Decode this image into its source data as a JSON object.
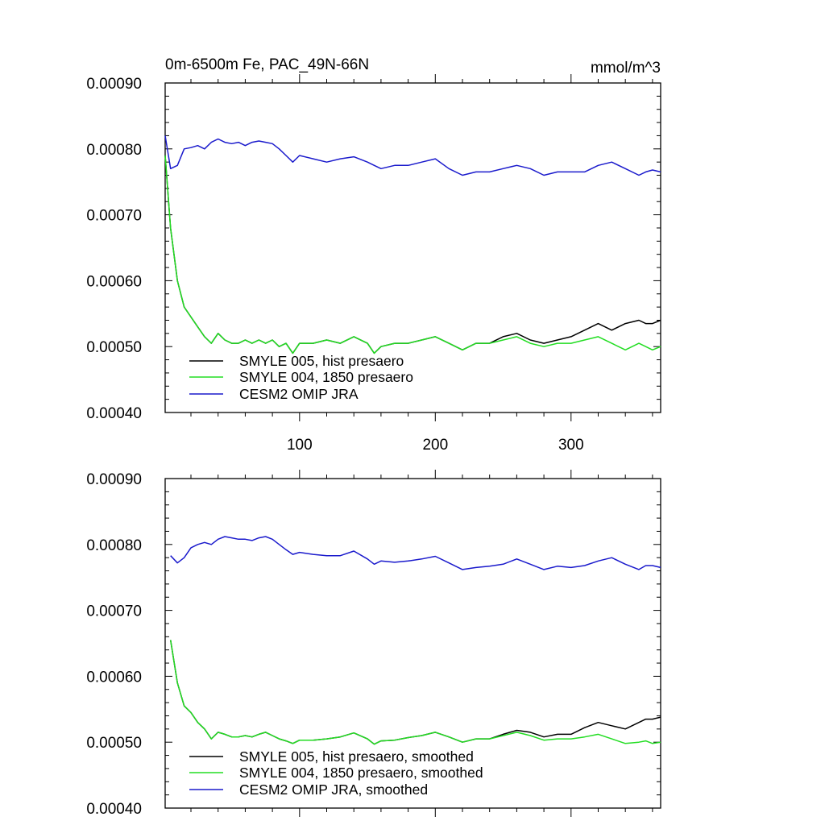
{
  "colors": {
    "black": "#000000",
    "green": "#22dd22",
    "blue": "#1a1acc"
  },
  "chart_data": [
    {
      "type": "line",
      "title": "0m-6500m Fe, PAC_49N-66N",
      "units": "mmol/m^3",
      "xlim": [
        1,
        366
      ],
      "ylim": [
        0.0004,
        0.0009
      ],
      "yticks": [
        "0.00040",
        "0.00050",
        "0.00060",
        "0.00070",
        "0.00080",
        "0.00090"
      ],
      "xticks": [
        "100",
        "200",
        "300"
      ],
      "legend_placement": "bottom-left",
      "series": [
        {
          "name": "SMYLE 005, hist presaero",
          "color": "black",
          "x": [
            1,
            5,
            10,
            15,
            20,
            25,
            30,
            35,
            40,
            45,
            50,
            55,
            60,
            65,
            70,
            75,
            80,
            85,
            90,
            95,
            100,
            110,
            120,
            130,
            140,
            150,
            155,
            160,
            170,
            180,
            190,
            200,
            210,
            220,
            230,
            240,
            250,
            260,
            270,
            280,
            290,
            300,
            310,
            320,
            330,
            340,
            350,
            355,
            360,
            366
          ],
          "y": [
            0.00079,
            0.00068,
            0.0006,
            0.00056,
            0.000545,
            0.00053,
            0.000515,
            0.000505,
            0.00052,
            0.00051,
            0.000505,
            0.000505,
            0.00051,
            0.000505,
            0.00051,
            0.000505,
            0.00051,
            0.0005,
            0.000505,
            0.00049,
            0.000505,
            0.000505,
            0.00051,
            0.000505,
            0.000515,
            0.000505,
            0.00049,
            0.0005,
            0.000505,
            0.000505,
            0.00051,
            0.000515,
            0.000505,
            0.000495,
            0.000505,
            0.000505,
            0.000515,
            0.00052,
            0.00051,
            0.000505,
            0.00051,
            0.000515,
            0.000525,
            0.000535,
            0.000525,
            0.000535,
            0.00054,
            0.000535,
            0.000535,
            0.00054
          ]
        },
        {
          "name": "SMYLE 004, 1850 presaero",
          "color": "green",
          "x": [
            1,
            5,
            10,
            15,
            20,
            25,
            30,
            35,
            40,
            45,
            50,
            55,
            60,
            65,
            70,
            75,
            80,
            85,
            90,
            95,
            100,
            110,
            120,
            130,
            140,
            150,
            155,
            160,
            170,
            180,
            190,
            200,
            210,
            220,
            230,
            240,
            250,
            260,
            270,
            280,
            290,
            300,
            310,
            320,
            330,
            340,
            350,
            355,
            360,
            366
          ],
          "y": [
            0.00079,
            0.00068,
            0.0006,
            0.00056,
            0.000545,
            0.00053,
            0.000515,
            0.000505,
            0.00052,
            0.00051,
            0.000505,
            0.000505,
            0.00051,
            0.000505,
            0.00051,
            0.000505,
            0.00051,
            0.0005,
            0.000505,
            0.00049,
            0.000505,
            0.000505,
            0.00051,
            0.000505,
            0.000515,
            0.000505,
            0.00049,
            0.0005,
            0.000505,
            0.000505,
            0.00051,
            0.000515,
            0.000505,
            0.000495,
            0.000505,
            0.000505,
            0.00051,
            0.000515,
            0.000505,
            0.0005,
            0.000505,
            0.000505,
            0.00051,
            0.000515,
            0.000505,
            0.000495,
            0.000505,
            0.0005,
            0.000495,
            0.0005
          ]
        },
        {
          "name": "CESM2 OMIP JRA",
          "color": "blue",
          "x": [
            1,
            5,
            10,
            15,
            20,
            25,
            30,
            35,
            40,
            45,
            50,
            55,
            60,
            65,
            70,
            75,
            80,
            85,
            90,
            95,
            100,
            110,
            120,
            130,
            140,
            150,
            155,
            160,
            170,
            180,
            190,
            200,
            210,
            220,
            230,
            240,
            250,
            260,
            270,
            280,
            290,
            300,
            310,
            320,
            330,
            340,
            350,
            355,
            360,
            366
          ],
          "y": [
            0.00082,
            0.00077,
            0.000775,
            0.0008,
            0.000802,
            0.000805,
            0.0008,
            0.00081,
            0.000815,
            0.00081,
            0.000808,
            0.00081,
            0.000805,
            0.00081,
            0.000812,
            0.00081,
            0.000808,
            0.0008,
            0.00079,
            0.00078,
            0.00079,
            0.000785,
            0.00078,
            0.000785,
            0.000788,
            0.00078,
            0.000775,
            0.00077,
            0.000775,
            0.000775,
            0.00078,
            0.000785,
            0.00077,
            0.00076,
            0.000765,
            0.000765,
            0.00077,
            0.000775,
            0.00077,
            0.00076,
            0.000765,
            0.000765,
            0.000765,
            0.000775,
            0.00078,
            0.00077,
            0.00076,
            0.000765,
            0.000768,
            0.000765
          ]
        }
      ]
    },
    {
      "type": "line",
      "xlim": [
        1,
        366
      ],
      "ylim": [
        0.0004,
        0.0009
      ],
      "yticks": [
        "0.00040",
        "0.00050",
        "0.00060",
        "0.00070",
        "0.00080",
        "0.00090"
      ],
      "legend_placement": "bottom-left",
      "series": [
        {
          "name": "SMYLE 005, hist presaero, smoothed",
          "color": "black",
          "x": [
            5,
            10,
            15,
            20,
            25,
            30,
            35,
            40,
            45,
            50,
            55,
            60,
            65,
            70,
            75,
            80,
            85,
            90,
            95,
            100,
            110,
            120,
            130,
            140,
            150,
            155,
            160,
            170,
            180,
            190,
            200,
            210,
            220,
            230,
            240,
            250,
            260,
            270,
            280,
            290,
            300,
            310,
            320,
            330,
            340,
            350,
            355,
            360,
            366
          ],
          "y": [
            0.000655,
            0.00059,
            0.000555,
            0.000545,
            0.00053,
            0.00052,
            0.000505,
            0.000515,
            0.000512,
            0.000508,
            0.000508,
            0.00051,
            0.000508,
            0.000512,
            0.000515,
            0.00051,
            0.000505,
            0.000502,
            0.000498,
            0.000503,
            0.000503,
            0.000505,
            0.000508,
            0.000514,
            0.000505,
            0.000497,
            0.000502,
            0.000503,
            0.000507,
            0.00051,
            0.000515,
            0.000508,
            0.0005,
            0.000505,
            0.000505,
            0.000512,
            0.000518,
            0.000515,
            0.000508,
            0.000512,
            0.000512,
            0.000522,
            0.00053,
            0.000525,
            0.00052,
            0.00053,
            0.000535,
            0.000535,
            0.000538
          ]
        },
        {
          "name": "SMYLE 004, 1850 presaero, smoothed",
          "color": "green",
          "x": [
            5,
            10,
            15,
            20,
            25,
            30,
            35,
            40,
            45,
            50,
            55,
            60,
            65,
            70,
            75,
            80,
            85,
            90,
            95,
            100,
            110,
            120,
            130,
            140,
            150,
            155,
            160,
            170,
            180,
            190,
            200,
            210,
            220,
            230,
            240,
            250,
            260,
            270,
            280,
            290,
            300,
            310,
            320,
            330,
            340,
            350,
            355,
            360,
            366
          ],
          "y": [
            0.000655,
            0.00059,
            0.000555,
            0.000545,
            0.00053,
            0.00052,
            0.000505,
            0.000515,
            0.000512,
            0.000508,
            0.000508,
            0.00051,
            0.000508,
            0.000512,
            0.000515,
            0.00051,
            0.000505,
            0.000502,
            0.000498,
            0.000503,
            0.000503,
            0.000505,
            0.000508,
            0.000514,
            0.000505,
            0.000497,
            0.000502,
            0.000503,
            0.000507,
            0.00051,
            0.000515,
            0.000508,
            0.0005,
            0.000505,
            0.000505,
            0.00051,
            0.000515,
            0.00051,
            0.000503,
            0.000505,
            0.000505,
            0.000508,
            0.000512,
            0.000505,
            0.000498,
            0.0005,
            0.000502,
            0.000498,
            0.0005
          ]
        },
        {
          "name": "CESM2 OMIP JRA, smoothed",
          "color": "blue",
          "x": [
            5,
            10,
            15,
            20,
            25,
            30,
            35,
            40,
            45,
            50,
            55,
            60,
            65,
            70,
            75,
            80,
            85,
            90,
            95,
            100,
            110,
            120,
            130,
            140,
            150,
            155,
            160,
            170,
            180,
            190,
            200,
            210,
            220,
            230,
            240,
            250,
            260,
            270,
            280,
            290,
            300,
            310,
            320,
            330,
            340,
            350,
            355,
            360,
            366
          ],
          "y": [
            0.000783,
            0.000772,
            0.00078,
            0.000795,
            0.0008,
            0.000803,
            0.0008,
            0.000808,
            0.000812,
            0.00081,
            0.000808,
            0.000808,
            0.000806,
            0.00081,
            0.000812,
            0.000808,
            0.0008,
            0.000792,
            0.000785,
            0.000788,
            0.000785,
            0.000783,
            0.000783,
            0.00079,
            0.000778,
            0.00077,
            0.000775,
            0.000773,
            0.000775,
            0.000778,
            0.000782,
            0.000772,
            0.000762,
            0.000765,
            0.000767,
            0.00077,
            0.000778,
            0.00077,
            0.000762,
            0.000767,
            0.000765,
            0.000768,
            0.000775,
            0.00078,
            0.00077,
            0.000762,
            0.000768,
            0.000768,
            0.000765
          ]
        }
      ]
    }
  ]
}
